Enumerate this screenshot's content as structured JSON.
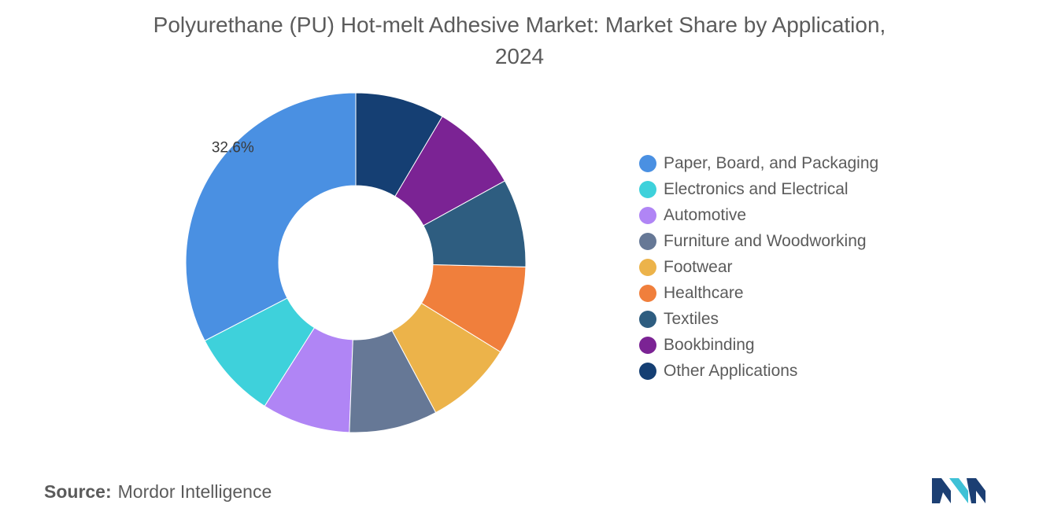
{
  "header": {
    "title_line1": "Polyurethane (PU) Hot-melt Adhesive Market: Market Share by Application,",
    "title_line2": "2024"
  },
  "chart_data": {
    "type": "pie",
    "variant": "donut",
    "title": "Polyurethane (PU) Hot-melt Adhesive Market: Market Share by Application, 2024",
    "labels": [
      "Paper, Board, and Packaging",
      "Electronics and Electrical",
      "Automotive",
      "Furniture and Woodworking",
      "Footwear",
      "Healthcare",
      "Textiles",
      "Bookbinding",
      "Other Applications"
    ],
    "values": [
      32.6,
      8.4,
      8.4,
      8.4,
      8.4,
      8.4,
      8.4,
      8.5,
      8.5
    ],
    "colors": [
      "#4a90e2",
      "#3ed1db",
      "#b085f5",
      "#667896",
      "#ecb34a",
      "#f07f3c",
      "#2e5d80",
      "#7b2394",
      "#153f73"
    ],
    "data_labels": [
      "32.6%",
      "",
      "",
      "",
      "",
      "",
      "",
      "",
      ""
    ],
    "legend_position": "right",
    "start": "12 o'clock",
    "direction": "counterclockwise"
  },
  "footer": {
    "source_label": "Source:",
    "source_value": "Mordor Intelligence"
  },
  "logo": {
    "icon": "mordor-intelligence-logo-icon",
    "colors": [
      "#1c3f73",
      "#3fc1d6"
    ]
  }
}
